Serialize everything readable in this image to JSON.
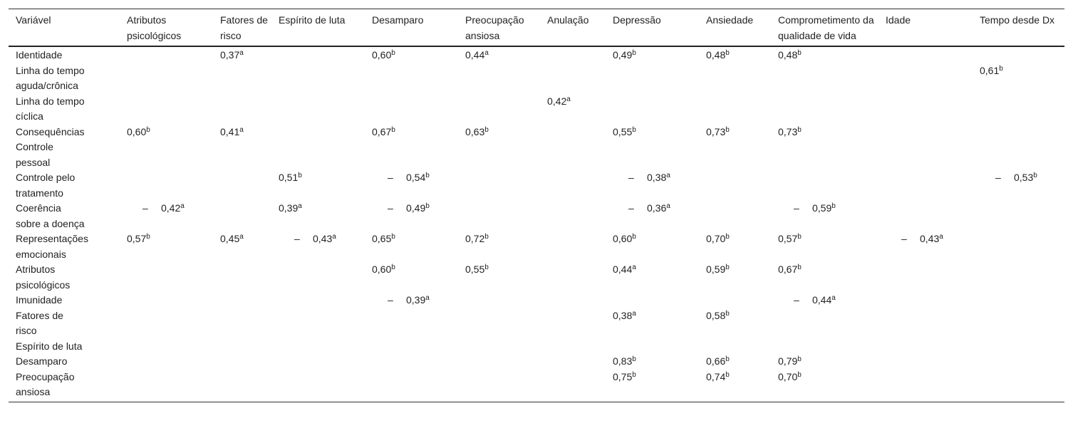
{
  "table": {
    "headers": [
      "Variável",
      "Atributos psicológicos",
      "Fatores de risco",
      "Espírito de luta",
      "Desamparo",
      "Preocupação ansiosa",
      "Anulação",
      "Depressão",
      "Ansiedade",
      "Comprometimento da qualidade de vida",
      "Idade",
      "Tempo desde Dx"
    ],
    "rows": [
      {
        "label": "Identidade",
        "cells": [
          null,
          {
            "value": "0,37",
            "sup": "a"
          },
          null,
          {
            "value": "0,60",
            "sup": "b"
          },
          {
            "value": "0,44",
            "sup": "a"
          },
          null,
          {
            "value": "0,49",
            "sup": "b"
          },
          {
            "value": "0,48",
            "sup": "b"
          },
          {
            "value": "0,48",
            "sup": "b"
          },
          null,
          null
        ]
      },
      {
        "label": "Linha do tempo\naguda/crônica",
        "cells": [
          null,
          null,
          null,
          null,
          null,
          null,
          null,
          null,
          null,
          null,
          {
            "value": "0,61",
            "sup": "b"
          }
        ]
      },
      {
        "label": "Linha do tempo\ncíclica",
        "cells": [
          null,
          null,
          null,
          null,
          null,
          {
            "value": "0,42",
            "sup": "a"
          },
          null,
          null,
          null,
          null,
          null
        ]
      },
      {
        "label": "Consequências",
        "cells": [
          {
            "value": "0,60",
            "sup": "b"
          },
          {
            "value": "0,41",
            "sup": "a"
          },
          null,
          {
            "value": "0,67",
            "sup": "b"
          },
          {
            "value": "0,63",
            "sup": "b"
          },
          null,
          {
            "value": "0,55",
            "sup": "b"
          },
          {
            "value": "0,73",
            "sup": "b"
          },
          {
            "value": "0,73",
            "sup": "b"
          },
          null,
          null
        ]
      },
      {
        "label": "Controle\npessoal",
        "cells": [
          null,
          null,
          null,
          null,
          null,
          null,
          null,
          null,
          null,
          null,
          null
        ]
      },
      {
        "label": "Controle pelo\ntratamento",
        "cells": [
          null,
          null,
          {
            "value": "0,51",
            "sup": "b"
          },
          {
            "sign": "–",
            "value": "0,54",
            "sup": "b"
          },
          null,
          null,
          {
            "sign": "–",
            "value": "0,38",
            "sup": "a"
          },
          null,
          null,
          null,
          {
            "sign": "–",
            "value": "0,53",
            "sup": "b"
          }
        ]
      },
      {
        "label": "Coerência\nsobre a doença",
        "cells": [
          {
            "sign": "–",
            "value": "0,42",
            "sup": "a"
          },
          null,
          {
            "value": "0,39",
            "sup": "a"
          },
          {
            "sign": "–",
            "value": "0,49",
            "sup": "b"
          },
          null,
          null,
          {
            "sign": "–",
            "value": "0,36",
            "sup": "a"
          },
          null,
          {
            "sign": "–",
            "value": "0,59",
            "sup": "b"
          },
          null,
          null
        ]
      },
      {
        "label": "Representações\nemocionais",
        "cells": [
          {
            "value": "0,57",
            "sup": "b"
          },
          {
            "value": "0,45",
            "sup": "a"
          },
          {
            "sign": "–",
            "value": "0,43",
            "sup": "a"
          },
          {
            "value": "0,65",
            "sup": "b"
          },
          {
            "value": "0,72",
            "sup": "b"
          },
          null,
          {
            "value": "0,60",
            "sup": "b"
          },
          {
            "value": "0,70",
            "sup": "b"
          },
          {
            "value": "0,57",
            "sup": "b"
          },
          {
            "sign": "–",
            "value": "0,43",
            "sup": "a"
          },
          null
        ]
      },
      {
        "label": "Atributos\npsicológicos",
        "cells": [
          null,
          null,
          null,
          {
            "value": "0,60",
            "sup": "b"
          },
          {
            "value": "0,55",
            "sup": "b"
          },
          null,
          {
            "value": "0,44",
            "sup": "a"
          },
          {
            "value": "0,59",
            "sup": "b"
          },
          {
            "value": "0,67",
            "sup": "b"
          },
          null,
          null
        ]
      },
      {
        "label": "Imunidade",
        "cells": [
          null,
          null,
          null,
          {
            "sign": "–",
            "value": "0,39",
            "sup": "a"
          },
          null,
          null,
          null,
          null,
          {
            "sign": "–",
            "value": "0,44",
            "sup": "a"
          },
          null,
          null
        ]
      },
      {
        "label": "Fatores de\nrisco",
        "cells": [
          null,
          null,
          null,
          null,
          null,
          null,
          {
            "value": "0,38",
            "sup": "a"
          },
          {
            "value": "0,58",
            "sup": "b"
          },
          null,
          null,
          null
        ]
      },
      {
        "label": "Espírito de luta",
        "cells": [
          null,
          null,
          null,
          null,
          null,
          null,
          null,
          null,
          null,
          null,
          null
        ]
      },
      {
        "label": "Desamparo",
        "cells": [
          null,
          null,
          null,
          null,
          null,
          null,
          {
            "value": "0,83",
            "sup": "b"
          },
          {
            "value": "0,66",
            "sup": "b"
          },
          {
            "value": "0,79",
            "sup": "b"
          },
          null,
          null
        ]
      },
      {
        "label": "Preocupação\nansiosa",
        "cells": [
          null,
          null,
          null,
          null,
          null,
          null,
          {
            "value": "0,75",
            "sup": "b"
          },
          {
            "value": "0,74",
            "sup": "b"
          },
          {
            "value": "0,70",
            "sup": "b"
          },
          null,
          null
        ]
      }
    ]
  }
}
